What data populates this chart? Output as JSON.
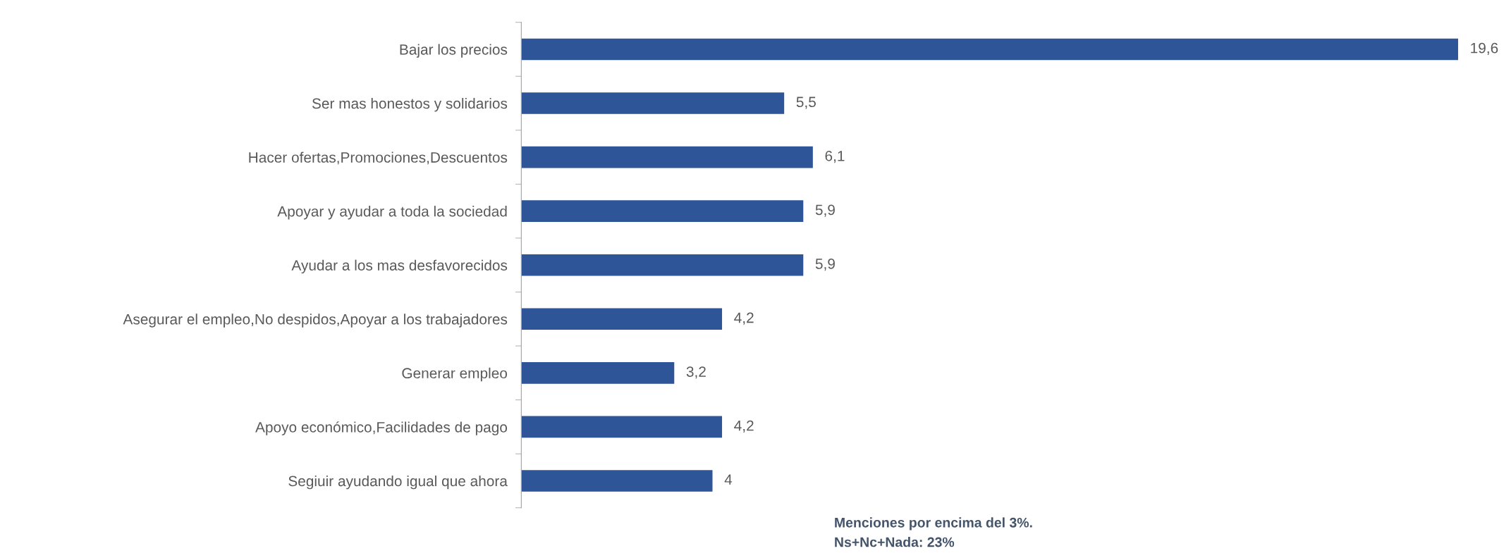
{
  "chart_data": {
    "type": "bar",
    "orientation": "horizontal",
    "categories": [
      "Bajar los precios",
      "Ser mas honestos y solidarios",
      "Hacer ofertas,Promociones,Descuentos",
      "Apoyar y ayudar a toda la sociedad",
      "Ayudar a los mas desfavorecidos",
      "Asegurar el empleo,No despidos,Apoyar a los trabajadores",
      "Generar empleo",
      "Apoyo económico,Facilidades de pago",
      "Segiuir ayudando igual que ahora"
    ],
    "values": [
      19.6,
      5.5,
      6.1,
      5.9,
      5.9,
      4.2,
      3.2,
      4.2,
      4
    ],
    "value_labels": [
      "19,6",
      "5,5",
      "6,1",
      "5,9",
      "5,9",
      "4,2",
      "3,2",
      "4,2",
      "4"
    ],
    "color": "#2e5597",
    "tick_labels": "y",
    "grid": false,
    "legend": false,
    "annotations": [
      "Menciones por encima del 3%.",
      "Ns+Nc+Nada: 23%"
    ]
  }
}
